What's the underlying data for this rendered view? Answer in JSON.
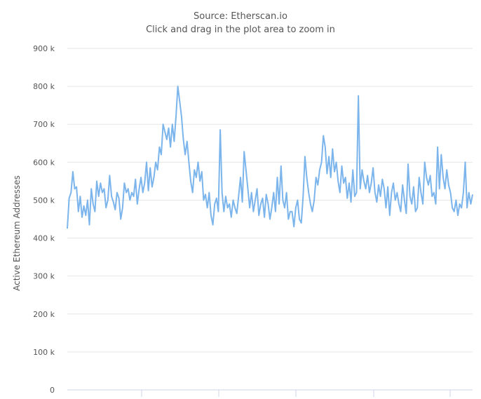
{
  "subtitle_lines": [
    "Source: Etherscan.io",
    "Click and drag in the plot area to zoom in"
  ],
  "chart_data": {
    "type": "line",
    "title": "",
    "ylabel": "Active Ethereum Addresses",
    "xlabel": "",
    "ylim": [
      0,
      900000
    ],
    "y_ticks": [
      {
        "value": 0,
        "label": "0"
      },
      {
        "value": 100000,
        "label": "100 k"
      },
      {
        "value": 200000,
        "label": "200 k"
      },
      {
        "value": 300000,
        "label": "300 k"
      },
      {
        "value": 400000,
        "label": "400 k"
      },
      {
        "value": 500000,
        "label": "500 k"
      },
      {
        "value": 600000,
        "label": "600 k"
      },
      {
        "value": 700000,
        "label": "700 k"
      },
      {
        "value": 800000,
        "label": "800 k"
      },
      {
        "value": 900000,
        "label": "900 k"
      }
    ],
    "grid": true,
    "line_color": "#7cb5ec",
    "series": [
      {
        "values": [
          425000,
          505000,
          520000,
          575000,
          530000,
          535000,
          470000,
          510000,
          455000,
          485000,
          460000,
          500000,
          435000,
          530000,
          490000,
          470000,
          550000,
          510000,
          545000,
          520000,
          530000,
          480000,
          500000,
          565000,
          510000,
          495000,
          475000,
          520000,
          505000,
          450000,
          480000,
          545000,
          520000,
          530000,
          500000,
          520000,
          510000,
          555000,
          490000,
          530000,
          560000,
          520000,
          545000,
          600000,
          525000,
          585000,
          535000,
          560000,
          600000,
          580000,
          640000,
          620000,
          700000,
          680000,
          660000,
          690000,
          640000,
          700000,
          655000,
          720000,
          800000,
          760000,
          720000,
          660000,
          620000,
          655000,
          600000,
          550000,
          520000,
          580000,
          560000,
          600000,
          550000,
          575000,
          500000,
          515000,
          480000,
          520000,
          460000,
          435000,
          490000,
          505000,
          470000,
          685000,
          520000,
          470000,
          510000,
          480000,
          490000,
          455000,
          500000,
          480000,
          465000,
          510000,
          560000,
          495000,
          628000,
          580000,
          530000,
          480000,
          520000,
          470000,
          500000,
          530000,
          460000,
          490000,
          505000,
          455000,
          515000,
          490000,
          450000,
          480000,
          520000,
          470000,
          560000,
          490000,
          590000,
          500000,
          480000,
          520000,
          450000,
          470000,
          470000,
          430000,
          480000,
          500000,
          450000,
          440000,
          510000,
          615000,
          560000,
          520000,
          490000,
          470000,
          500000,
          560000,
          540000,
          580000,
          600000,
          670000,
          640000,
          570000,
          615000,
          560000,
          635000,
          575000,
          600000,
          550000,
          520000,
          590000,
          545000,
          560000,
          505000,
          545000,
          495000,
          580000,
          510000,
          520000,
          775000,
          530000,
          580000,
          550000,
          530000,
          565000,
          520000,
          545000,
          585000,
          520000,
          495000,
          540000,
          510000,
          555000,
          530000,
          480000,
          535000,
          460000,
          520000,
          545000,
          500000,
          520000,
          490000,
          470000,
          540000,
          500000,
          465000,
          595000,
          510000,
          490000,
          535000,
          470000,
          480000,
          560000,
          520000,
          490000,
          600000,
          560000,
          540000,
          565000,
          510000,
          520000,
          490000,
          640000,
          530000,
          620000,
          560000,
          530000,
          580000,
          540000,
          520000,
          480000,
          470000,
          500000,
          460000,
          490000,
          480000,
          520000,
          600000,
          480000,
          520000,
          490000,
          515000
        ]
      }
    ]
  }
}
